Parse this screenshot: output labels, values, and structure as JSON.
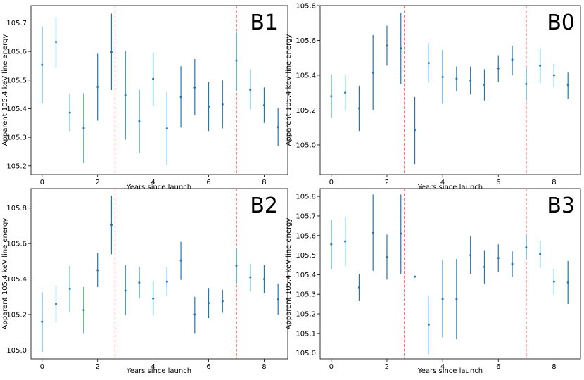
{
  "figure": {
    "xlabel": "Years since launch",
    "ylabel": "Apparent 105.4 keV line energy",
    "marker_color": "#1f77b4",
    "vline_color": "#d62728"
  },
  "chart_data": [
    {
      "type": "scatter",
      "panel_label": "B1",
      "xlabel": "Years since launch",
      "ylabel": "Apparent 105.4 keV line energy",
      "xlim": [
        -0.4,
        8.85
      ],
      "ylim": [
        105.17,
        105.76
      ],
      "xticks": [
        0,
        2,
        4,
        6,
        8
      ],
      "yticks": [
        105.2,
        105.3,
        105.4,
        105.5,
        105.6,
        105.7
      ],
      "vlines": [
        2.63,
        7.0
      ],
      "series": [
        {
          "name": "B1",
          "x": [
            0,
            0.5,
            1,
            1.5,
            2,
            2.5,
            3,
            3.5,
            4,
            4.5,
            5,
            5.5,
            6,
            6.5,
            7,
            7.5,
            8,
            8.5
          ],
          "y": [
            105.553,
            105.633,
            105.386,
            105.332,
            105.476,
            105.597,
            105.447,
            105.356,
            105.504,
            105.331,
            105.441,
            105.474,
            105.407,
            105.415,
            105.568,
            105.466,
            105.412,
            105.335
          ],
          "yerr_low": [
            105.418,
            105.545,
            105.322,
            105.21,
            105.358,
            105.465,
            105.292,
            105.246,
            105.41,
            105.203,
            105.334,
            105.377,
            105.322,
            105.331,
            105.46,
            105.398,
            105.35,
            105.269
          ],
          "yerr_high": [
            105.687,
            105.72,
            105.45,
            105.454,
            105.592,
            105.732,
            105.602,
            105.466,
            105.596,
            105.458,
            105.548,
            105.573,
            105.492,
            105.499,
            105.666,
            105.537,
            105.474,
            105.401
          ]
        }
      ]
    },
    {
      "type": "scatter",
      "panel_label": "B0",
      "xlabel": "Years since launch",
      "ylabel": "Apparent 105.4 keV line energy",
      "xlim": [
        -0.4,
        8.95
      ],
      "ylim": [
        104.83,
        105.8
      ],
      "xticks": [
        0,
        2,
        4,
        6,
        8
      ],
      "yticks": [
        105.0,
        105.2,
        105.4,
        105.6,
        105.8
      ],
      "vlines": [
        2.63,
        7.0
      ],
      "series": [
        {
          "name": "B0",
          "x": [
            0,
            0.5,
            1,
            1.5,
            2,
            2.5,
            3,
            3.5,
            4,
            4.5,
            5,
            5.5,
            6,
            6.5,
            7,
            7.5,
            8,
            8.5
          ],
          "y": [
            105.28,
            105.3,
            105.21,
            105.415,
            105.57,
            105.555,
            105.085,
            105.47,
            105.39,
            105.38,
            105.37,
            105.345,
            105.44,
            105.49,
            105.35,
            105.455,
            105.4,
            105.345
          ],
          "yerr_low": [
            105.155,
            105.2,
            105.08,
            105.2,
            105.455,
            105.35,
            104.89,
            105.36,
            105.235,
            105.31,
            105.29,
            105.255,
            105.36,
            105.4,
            105.255,
            105.355,
            105.33,
            105.265
          ],
          "yerr_high": [
            105.405,
            105.4,
            105.34,
            105.63,
            105.685,
            105.76,
            105.275,
            105.585,
            105.545,
            105.45,
            105.45,
            105.435,
            105.515,
            105.57,
            105.445,
            105.555,
            105.465,
            105.415
          ]
        }
      ]
    },
    {
      "type": "scatter",
      "panel_label": "B2",
      "xlabel": "Years since launch",
      "ylabel": "Apparent 105.4 keV line energy",
      "xlim": [
        -0.4,
        8.85
      ],
      "ylim": [
        104.95,
        105.91
      ],
      "xticks": [
        0,
        2,
        4,
        6,
        8
      ],
      "yticks": [
        105.0,
        105.2,
        105.4,
        105.6,
        105.8
      ],
      "vlines": [
        2.63,
        7.0
      ],
      "series": [
        {
          "name": "B2",
          "x": [
            0,
            0.5,
            1,
            1.5,
            2,
            2.5,
            3,
            3.5,
            4,
            4.5,
            5,
            5.5,
            6,
            6.5,
            7,
            7.5,
            8,
            8.5
          ],
          "y": [
            105.16,
            105.26,
            105.345,
            105.225,
            105.45,
            105.705,
            105.335,
            105.38,
            105.29,
            105.385,
            105.505,
            105.2,
            105.265,
            105.275,
            105.475,
            105.41,
            105.4,
            105.285
          ],
          "yerr_low": [
            104.99,
            105.155,
            105.215,
            105.095,
            105.355,
            105.54,
            105.195,
            105.29,
            105.195,
            105.305,
            105.395,
            105.095,
            105.18,
            105.21,
            105.375,
            105.335,
            105.32,
            105.2
          ],
          "yerr_high": [
            105.325,
            105.365,
            105.475,
            105.355,
            105.545,
            105.87,
            105.48,
            105.47,
            105.385,
            105.465,
            105.61,
            105.3,
            105.35,
            105.34,
            105.575,
            105.485,
            105.48,
            105.375
          ]
        }
      ]
    },
    {
      "type": "scatter",
      "panel_label": "B3",
      "xlabel": "Years since launch",
      "ylabel": "Apparent 105.4 keV line energy",
      "xlim": [
        -0.4,
        8.95
      ],
      "ylim": [
        104.97,
        105.84
      ],
      "xticks": [
        0,
        2,
        4,
        6,
        8
      ],
      "yticks": [
        105.0,
        105.1,
        105.2,
        105.3,
        105.4,
        105.5,
        105.6,
        105.7,
        105.8
      ],
      "vlines": [
        2.63,
        7.0
      ],
      "series": [
        {
          "name": "B3",
          "x": [
            0,
            0.5,
            1,
            1.5,
            2,
            2.5,
            3,
            3.5,
            4,
            4.5,
            5,
            5.5,
            6,
            6.5,
            7,
            7.5,
            8,
            8.5
          ],
          "y": [
            105.555,
            105.57,
            105.335,
            105.615,
            105.49,
            105.61,
            105.39,
            105.145,
            105.275,
            105.275,
            105.5,
            105.44,
            105.485,
            105.455,
            105.54,
            105.505,
            105.365,
            105.36
          ],
          "yerr_low": [
            105.43,
            105.445,
            105.265,
            105.42,
            105.375,
            105.405,
            105.385,
            104.995,
            105.08,
            105.07,
            105.405,
            105.355,
            105.415,
            105.39,
            105.48,
            105.435,
            105.3,
            105.25
          ],
          "yerr_high": [
            105.68,
            105.695,
            105.405,
            105.81,
            105.605,
            105.81,
            105.395,
            105.295,
            105.475,
            105.48,
            105.595,
            105.525,
            105.555,
            105.52,
            105.6,
            105.575,
            105.43,
            105.47
          ]
        }
      ]
    }
  ]
}
